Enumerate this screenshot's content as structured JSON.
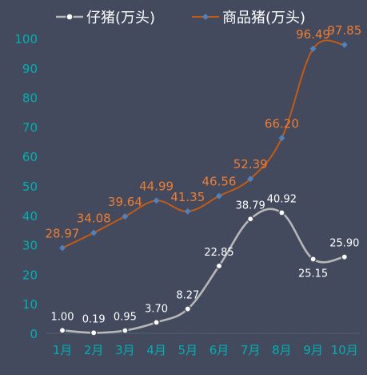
{
  "chart_data": {
    "type": "line",
    "categories": [
      "1月",
      "2月",
      "3月",
      "4月",
      "5月",
      "6月",
      "7月",
      "8月",
      "9月",
      "10月"
    ],
    "series": [
      {
        "name": "仔猪(万头)",
        "values": [
          1.0,
          0.19,
          0.95,
          3.7,
          8.27,
          22.85,
          38.79,
          40.92,
          25.15,
          25.9
        ],
        "labels": [
          "1.00",
          "0.19",
          "0.95",
          "3.70",
          "8.27",
          "22.85",
          "38.79",
          "40.92",
          "25.15",
          "25.90"
        ],
        "color": "#b7b7b7",
        "marker": "circle",
        "label_color": "#ffffff",
        "label_position": [
          "above",
          "above",
          "above",
          "above",
          "above",
          "above",
          "above",
          "above",
          "below",
          "above"
        ]
      },
      {
        "name": "商品猪(万头)",
        "values": [
          28.97,
          34.08,
          39.64,
          44.99,
          41.35,
          46.56,
          52.39,
          66.2,
          96.49,
          97.85
        ],
        "labels": [
          "28.97",
          "34.08",
          "39.64",
          "44.99",
          "41.35",
          "46.56",
          "52.39",
          "66.20",
          "96.49",
          "97.85"
        ],
        "color": "#c55a11",
        "marker": "diamond",
        "marker_color": "#4f81bd",
        "label_color": "#ed7d31",
        "label_position": [
          "above",
          "above",
          "above",
          "above",
          "above",
          "above",
          "above",
          "above",
          "above",
          "above"
        ]
      }
    ],
    "ylim": [
      0,
      100
    ],
    "yticks": [
      "0",
      "10",
      "20",
      "30",
      "40",
      "50",
      "60",
      "70",
      "80",
      "90",
      "100"
    ],
    "tick_color": "#00b0b0",
    "grid": false,
    "legend_position": "top",
    "xlabel": "",
    "ylabel": "",
    "title": ""
  }
}
